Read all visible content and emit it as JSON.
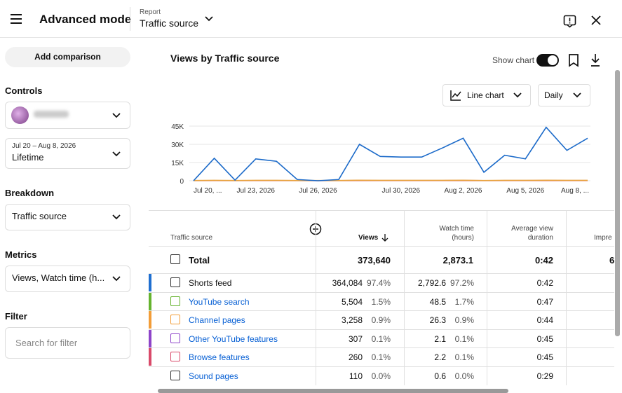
{
  "header": {
    "title": "Advanced mode",
    "report_label": "Report",
    "report_value": "Traffic source"
  },
  "sidebar": {
    "add_comparison": "Add comparison",
    "controls": "Controls",
    "date_range": "Jul 20 – Aug 8, 2026",
    "period": "Lifetime",
    "breakdown": "Breakdown",
    "breakdown_value": "Traffic source",
    "metrics": "Metrics",
    "metrics_value": "Views, Watch time (h...",
    "filter": "Filter",
    "filter_placeholder": "Search for filter"
  },
  "toolbar": {
    "show_chart": "Show chart",
    "chart_type": "Line chart",
    "interval": "Daily"
  },
  "chart_data": {
    "type": "line",
    "title": "Views by Traffic source",
    "categories": [
      "Jul 20, ...",
      null,
      null,
      "Jul 23, 2026",
      null,
      null,
      "Jul 26, 2026",
      null,
      null,
      null,
      "Jul 30, 2026",
      null,
      null,
      "Aug 2, 2026",
      null,
      null,
      "Aug 5, 2026",
      null,
      null,
      "Aug 8, ..."
    ],
    "series": [
      {
        "color": "#1b6ac9",
        "values": [
          0,
          18500,
          500,
          18000,
          16000,
          1000,
          0,
          1000,
          30000,
          20000,
          19500,
          19500,
          27000,
          35000,
          7000,
          21000,
          18000,
          44000,
          25000,
          35000
        ]
      },
      {
        "color": "#e8a33d",
        "values": [
          200,
          300,
          200,
          300,
          300,
          200,
          200,
          200,
          400,
          300,
          300,
          300,
          300,
          400,
          200,
          300,
          300,
          400,
          300,
          300
        ]
      },
      {
        "color": "#d9404e",
        "values": [
          100,
          150,
          100,
          150,
          150,
          100,
          100,
          100,
          200,
          150,
          150,
          150,
          150,
          200,
          100,
          150,
          150,
          200,
          150,
          150
        ]
      }
    ],
    "ylim": [
      0,
      45000
    ],
    "yticks": [
      0,
      {
        "value": 15000,
        "label": "15K"
      },
      {
        "value": 30000,
        "label": "30K"
      },
      {
        "value": 45000,
        "label": "45K"
      }
    ],
    "grid": true
  },
  "table": {
    "columns": [
      "Traffic source",
      "Views",
      "Watch time",
      "(hours)",
      "Average view",
      "duration",
      "Impre"
    ],
    "total": {
      "label": "Total",
      "views": "373,640",
      "watch_time": "2,873.1",
      "avg_duration": "0:42",
      "impressions": "6"
    },
    "rows": [
      {
        "color": "#1f6fd0",
        "source": "Shorts feed",
        "views": "364,084",
        "views_pct": "97.4%",
        "watch_time": "2,792.6",
        "watch_time_pct": "97.2%",
        "avg_duration": "0:42"
      },
      {
        "color": "#65b32e",
        "source": "YouTube search",
        "views": "5,504",
        "views_pct": "1.5%",
        "watch_time": "48.5",
        "watch_time_pct": "1.7%",
        "avg_duration": "0:47"
      },
      {
        "color": "#f29d38",
        "source": "Channel pages",
        "views": "3,258",
        "views_pct": "0.9%",
        "watch_time": "26.3",
        "watch_time_pct": "0.9%",
        "avg_duration": "0:44"
      },
      {
        "color": "#8e44c9",
        "source": "Other YouTube features",
        "views": "307",
        "views_pct": "0.1%",
        "watch_time": "2.1",
        "watch_time_pct": "0.1%",
        "avg_duration": "0:45"
      },
      {
        "color": "#d94a6a",
        "source": "Browse features",
        "views": "260",
        "views_pct": "0.1%",
        "watch_time": "2.2",
        "watch_time_pct": "0.1%",
        "avg_duration": "0:45"
      },
      {
        "color": "#ffffff",
        "source": "Sound pages",
        "views": "110",
        "views_pct": "0.0%",
        "watch_time": "0.6",
        "watch_time_pct": "0.0%",
        "avg_duration": "0:29"
      }
    ]
  }
}
